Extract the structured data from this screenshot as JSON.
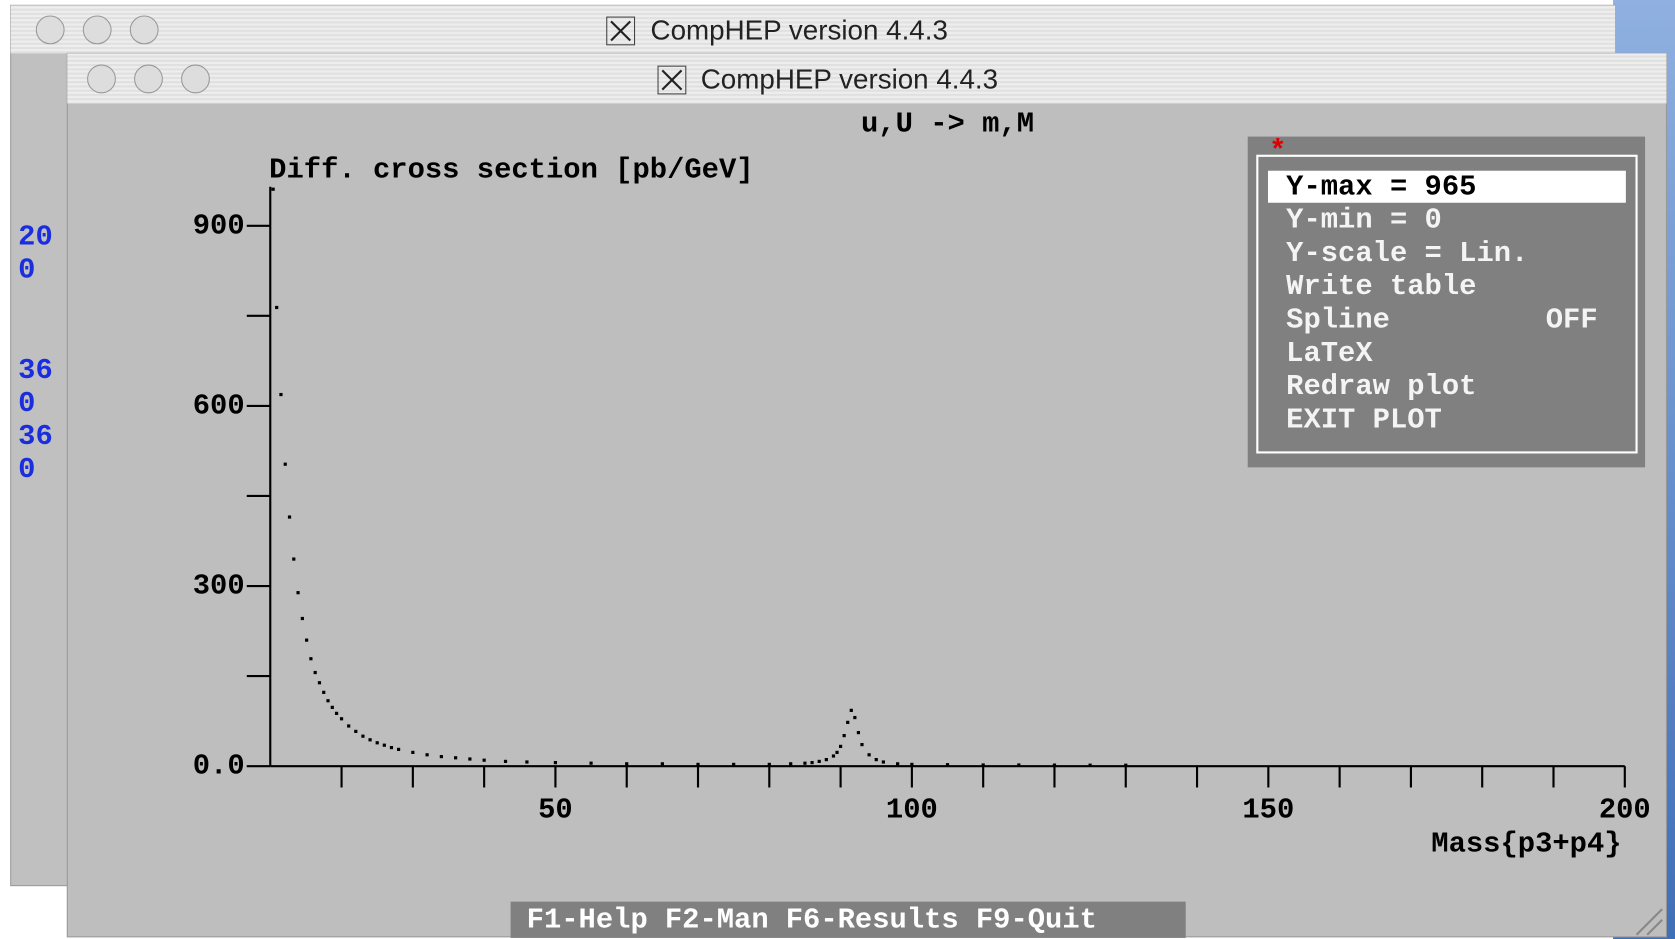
{
  "windows": [
    {
      "title": "CompHEP version 4.4.3"
    },
    {
      "title": "CompHEP version 4.4.3"
    }
  ],
  "background_text": [
    "20",
    "0",
    "36",
    "0",
    "36",
    "0"
  ],
  "chart_data": {
    "type": "scatter",
    "title": "u,U -> m,M",
    "y_label": "Diff. cross section [pb/GeV]",
    "x_label": "Mass{p3+p4}",
    "x": [
      10.4,
      10.9,
      11.5,
      12.1,
      12.7,
      13.3,
      13.9,
      14.5,
      15.1,
      15.7,
      16.3,
      16.9,
      17.5,
      18.1,
      18.7,
      19.3,
      20,
      21,
      22,
      23,
      24,
      25,
      26,
      27,
      28,
      30,
      32,
      34,
      36,
      38,
      40,
      43,
      46,
      50,
      55,
      60,
      65,
      70,
      75,
      80,
      83,
      85,
      86,
      87,
      88,
      89,
      89.5,
      90,
      90.5,
      91,
      91.5,
      92,
      92.5,
      93,
      94,
      95,
      96,
      98,
      100,
      105,
      110,
      115,
      120,
      125,
      130
    ],
    "values": [
      960,
      763,
      618,
      502,
      414,
      344,
      288,
      245,
      209,
      178,
      155,
      138,
      122,
      108,
      97,
      87,
      78,
      66,
      57,
      49,
      43,
      38,
      34,
      30,
      27,
      22,
      18,
      15,
      13,
      11,
      9,
      7,
      6,
      5,
      4,
      3,
      3,
      2,
      2,
      2,
      3,
      4,
      5,
      7,
      10,
      16,
      22,
      32,
      50,
      72,
      92,
      80,
      55,
      35,
      18,
      10,
      6,
      3,
      2,
      1.5,
      1,
      1,
      0.8,
      0.7,
      0.6
    ],
    "color": "#000000",
    "xlim": [
      10,
      200
    ],
    "xticks": [
      50,
      100,
      150,
      200
    ],
    "xticks_minor": [
      20,
      30,
      40,
      60,
      70,
      80,
      90,
      110,
      120,
      130,
      140,
      160,
      170,
      180,
      190
    ],
    "ylim": [
      0,
      965
    ],
    "yticks": [
      {
        "value": 0,
        "label": "0.0"
      },
      300,
      600,
      900
    ],
    "yticks_minor": [
      150,
      450,
      750
    ]
  },
  "menu": {
    "marker": "*",
    "items": [
      {
        "label": "Y-max = 965"
      },
      {
        "label": "Y-min = 0"
      },
      {
        "label": "Y-scale = Lin."
      },
      {
        "label": "Write table"
      },
      {
        "label": "Spline",
        "state": "OFF"
      },
      {
        "label": "LaTeX"
      },
      {
        "label": "Redraw plot"
      },
      {
        "label": "EXIT PLOT"
      }
    ]
  },
  "function_keys": [
    "F1-Help",
    "F2-Man",
    "F6-Results",
    "F9-Quit"
  ]
}
